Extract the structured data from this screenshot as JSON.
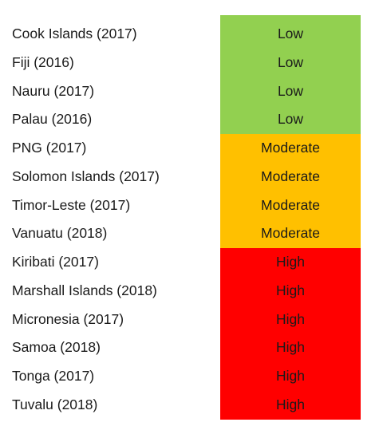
{
  "rows": [
    {
      "country": "Cook Islands (2017)",
      "risk": "Low",
      "level": "low"
    },
    {
      "country": "Fiji (2016)",
      "risk": "Low",
      "level": "low"
    },
    {
      "country": "Nauru (2017)",
      "risk": "Low",
      "level": "low"
    },
    {
      "country": "Palau (2016)",
      "risk": "Low",
      "level": "low"
    },
    {
      "country": "PNG (2017)",
      "risk": "Moderate",
      "level": "moderate"
    },
    {
      "country": "Solomon Islands (2017)",
      "risk": "Moderate",
      "level": "moderate"
    },
    {
      "country": "Timor-Leste (2017)",
      "risk": "Moderate",
      "level": "moderate"
    },
    {
      "country": "Vanuatu (2018)",
      "risk": "Moderate",
      "level": "moderate"
    },
    {
      "country": "Kiribati (2017)",
      "risk": "High",
      "level": "high"
    },
    {
      "country": "Marshall Islands (2018)",
      "risk": "High",
      "level": "high"
    },
    {
      "country": "Micronesia (2017)",
      "risk": "High",
      "level": "high"
    },
    {
      "country": "Samoa (2018)",
      "risk": "High",
      "level": "high"
    },
    {
      "country": "Tonga (2017)",
      "risk": "High",
      "level": "high"
    },
    {
      "country": "Tuvalu (2018)",
      "risk": "High",
      "level": "high"
    }
  ],
  "colors": {
    "low": "#92d050",
    "moderate": "#ffc000",
    "high": "#ff0000"
  }
}
